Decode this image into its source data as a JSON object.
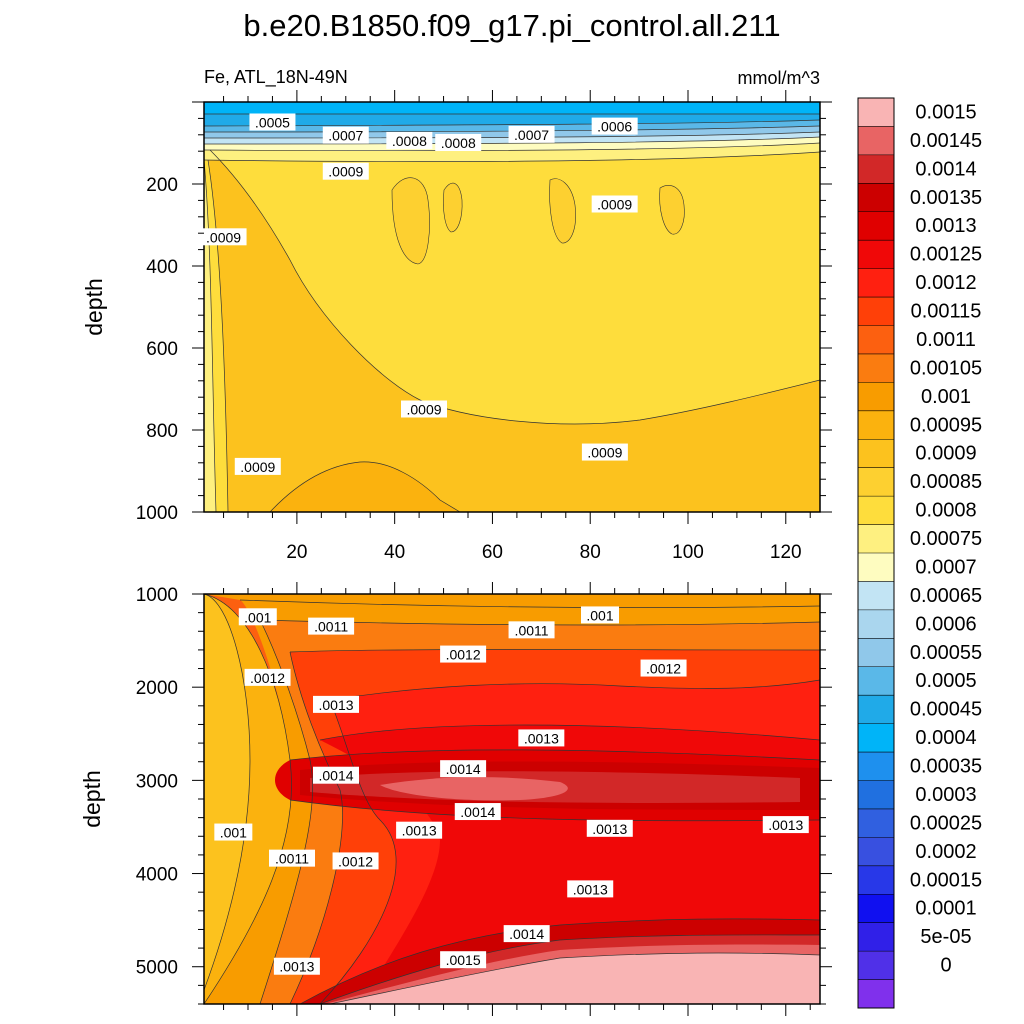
{
  "title": "b.e20.B1850.f09_g17.pi_control.all.211",
  "left_string": "Fe, ATL_18N-49N",
  "right_string": "mmol/m^3",
  "colorbar": {
    "labels": [
      "0.0015",
      "0.00145",
      "0.0014",
      "0.00135",
      "0.0013",
      "0.00125",
      "0.0012",
      "0.00115",
      "0.0011",
      "0.00105",
      "0.001",
      "0.00095",
      "0.0009",
      "0.00085",
      "0.0008",
      "0.00075",
      "0.0007",
      "0.00065",
      "0.0006",
      "0.00055",
      "0.0005",
      "0.00045",
      "0.0004",
      "0.00035",
      "0.0003",
      "0.00025",
      "0.0002",
      "0.00015",
      "0.0001",
      "5e-05",
      "0"
    ],
    "colors": [
      "#f9b4b4",
      "#e86464",
      "#d22828",
      "#cc0000",
      "#e00000",
      "#f00808",
      "#ff2010",
      "#ff4008",
      "#fc6010",
      "#fa7c10",
      "#f89c00",
      "#fbb20e",
      "#fcc21e",
      "#fdd030",
      "#fedd3c",
      "#fef080",
      "#fefcc0",
      "#c2e4f4",
      "#aad6ee",
      "#90c8ea",
      "#5ab8e8",
      "#20aae8",
      "#00b4f8",
      "#1e90ee",
      "#2070e0",
      "#3060e0",
      "#3850e0",
      "#2838e8",
      "#1010f0",
      "#3020e8",
      "#5030e8",
      "#8030ec"
    ]
  },
  "chart_data": [
    {
      "type": "heatmap",
      "panel": "upper",
      "variable": "Fe",
      "units": "mmol/m^3",
      "region": "ATL_18N-49N",
      "ylabel": "depth",
      "ylim": [
        0,
        1000
      ],
      "y_reversed": true,
      "xlim": [
        1,
        127
      ],
      "xticks": [
        20,
        40,
        60,
        80,
        100,
        120
      ],
      "yticks": [
        200,
        400,
        600,
        800,
        1000
      ],
      "contour_labels": [
        {
          "text": ".0005",
          "x": 15,
          "y": 50
        },
        {
          "text": ".0007",
          "x": 30,
          "y": 82
        },
        {
          "text": ".0008",
          "x": 43,
          "y": 95
        },
        {
          "text": ".0008",
          "x": 53,
          "y": 100
        },
        {
          "text": ".0007",
          "x": 68,
          "y": 80
        },
        {
          "text": ".0006",
          "x": 85,
          "y": 60
        },
        {
          "text": ".0009",
          "x": 30,
          "y": 170
        },
        {
          "text": ".0009",
          "x": 85,
          "y": 250
        },
        {
          "text": ".0009",
          "x": 5,
          "y": 330
        },
        {
          "text": ".0009",
          "x": 46,
          "y": 750
        },
        {
          "text": ".0009",
          "x": 83,
          "y": 855
        },
        {
          "text": ".0009",
          "x": 12,
          "y": 890
        }
      ]
    },
    {
      "type": "heatmap",
      "panel": "lower",
      "variable": "Fe",
      "units": "mmol/m^3",
      "region": "ATL_18N-49N",
      "ylabel": "depth",
      "ylim": [
        1000,
        5400
      ],
      "y_reversed": true,
      "xlim": [
        1,
        127
      ],
      "yticks": [
        1000,
        2000,
        3000,
        4000,
        5000
      ],
      "contour_labels": [
        {
          "text": ".001",
          "x": 12,
          "y": 1250
        },
        {
          "text": ".0011",
          "x": 27,
          "y": 1350
        },
        {
          "text": ".0011",
          "x": 68,
          "y": 1390
        },
        {
          "text": ".001",
          "x": 82,
          "y": 1230
        },
        {
          "text": ".0012",
          "x": 14,
          "y": 1900
        },
        {
          "text": ".0012",
          "x": 54,
          "y": 1650
        },
        {
          "text": ".0012",
          "x": 95,
          "y": 1800
        },
        {
          "text": ".0013",
          "x": 28,
          "y": 2190
        },
        {
          "text": ".0013",
          "x": 70,
          "y": 2550
        },
        {
          "text": ".0014",
          "x": 28,
          "y": 2950
        },
        {
          "text": ".0014",
          "x": 54,
          "y": 2880
        },
        {
          "text": ".0014",
          "x": 57,
          "y": 3340
        },
        {
          "text": ".0013",
          "x": 45,
          "y": 3540
        },
        {
          "text": ".0013",
          "x": 84,
          "y": 3520
        },
        {
          "text": ".0013",
          "x": 120,
          "y": 3480
        },
        {
          "text": ".001",
          "x": 7,
          "y": 3560
        },
        {
          "text": ".0011",
          "x": 19,
          "y": 3840
        },
        {
          "text": ".0012",
          "x": 32,
          "y": 3870
        },
        {
          "text": ".0013",
          "x": 80,
          "y": 4170
        },
        {
          "text": ".0014",
          "x": 67,
          "y": 4650
        },
        {
          "text": ".0015",
          "x": 54,
          "y": 4930
        },
        {
          "text": ".0013",
          "x": 20,
          "y": 5000
        }
      ]
    }
  ]
}
